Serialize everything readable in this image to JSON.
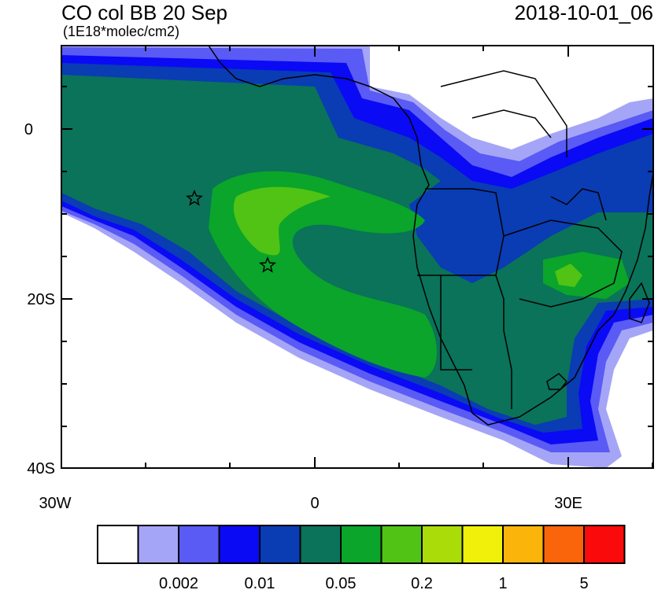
{
  "title": {
    "main": "CO col BB 20 Sep",
    "units": "(1E18*molec/cm2)",
    "datetime": "2018-10-01_06"
  },
  "axes": {
    "y_labels": [
      "0",
      "20S",
      "40S"
    ],
    "x_labels": [
      "30W",
      "0",
      "30E"
    ]
  },
  "colorbar": {
    "colors": [
      "#ffffff",
      "#a5a5f7",
      "#5a5af5",
      "#0a0af5",
      "#0a3cb4",
      "#0a7359",
      "#0aa52a",
      "#50c314",
      "#aadc0a",
      "#f0f00a",
      "#fab40a",
      "#fa640a",
      "#fa0a0a"
    ],
    "labels": [
      "0.002",
      "0.01",
      "0.05",
      "0.2",
      "1",
      "5"
    ]
  },
  "markers": [
    "star",
    "star"
  ],
  "palette": {
    "ocean_low": "#a5a5f7",
    "blue1": "#5a5af5",
    "blue2": "#0a0af5",
    "blue3": "#0a3cb4",
    "teal": "#0a7359",
    "green": "#0aa52a",
    "lightgreen": "#50c314",
    "yellowgreen": "#aadc0a"
  }
}
